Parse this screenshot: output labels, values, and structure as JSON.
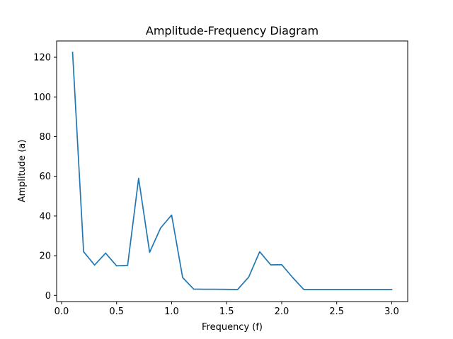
{
  "chart_data": {
    "type": "line",
    "title": "Amplitude-Frequency Diagram",
    "xlabel": "Frequency (f)",
    "ylabel": "Amplitude (a)",
    "xlim": [
      -0.045,
      3.145
    ],
    "ylim": [
      -3.1,
      128.2
    ],
    "xticks": [
      0.0,
      0.5,
      1.0,
      1.5,
      2.0,
      2.5,
      3.0
    ],
    "xtick_labels": [
      "0.0",
      "0.5",
      "1.0",
      "1.5",
      "2.0",
      "2.5",
      "3.0"
    ],
    "yticks": [
      0,
      20,
      40,
      60,
      80,
      100,
      120
    ],
    "ytick_labels": [
      "0",
      "20",
      "40",
      "60",
      "80",
      "100",
      "120"
    ],
    "grid": false,
    "color": "#1f77b4",
    "series": [
      {
        "x": [
          0.1,
          0.2,
          0.3,
          0.4,
          0.5,
          0.6,
          0.7,
          0.8,
          0.9,
          1.0,
          1.1,
          1.2,
          1.3,
          1.4,
          1.5,
          1.6,
          1.7,
          1.8,
          1.9,
          2.0,
          2.1,
          2.2,
          2.3,
          2.4,
          2.5,
          2.6,
          2.7,
          2.8,
          2.9,
          3.0
        ],
        "y": [
          122.5,
          22.0,
          15.3,
          21.3,
          14.9,
          15.1,
          59.0,
          21.7,
          34.0,
          40.5,
          9.0,
          3.2,
          3.1,
          3.1,
          3.05,
          3.0,
          9.2,
          22.0,
          15.4,
          15.5,
          9.0,
          3.0,
          3.0,
          3.0,
          3.0,
          3.0,
          3.0,
          3.0,
          3.0,
          3.0
        ]
      }
    ]
  }
}
